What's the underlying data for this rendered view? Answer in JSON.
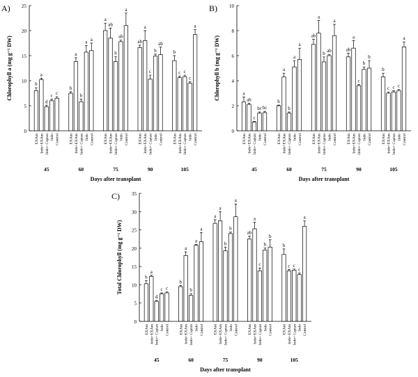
{
  "chart_data": [
    {
      "type": "bar",
      "panel_label": "A)",
      "ylabel": "Chlorophyll a (mg g⁻¹ DW)",
      "xlabel": "Days after transplant",
      "categories": [
        "45",
        "60",
        "75",
        "90",
        "105"
      ],
      "ylim": [
        0,
        25
      ],
      "yticks": [
        0,
        5,
        10,
        15,
        20,
        25
      ],
      "bar_color": "#ffffff",
      "series": [
        {
          "name": "EXAm",
          "values": [
            8,
            7.5,
            20,
            16.6,
            14
          ],
          "errors": [
            0.6,
            0.3,
            1.5,
            0.5,
            1
          ],
          "letters": [
            "b",
            "b",
            "a",
            "ab",
            "b"
          ]
        },
        {
          "name": "Indo+EXAm",
          "values": [
            10.2,
            13.8,
            18.5,
            18,
            10.6
          ],
          "errors": [
            0.3,
            0.8,
            2,
            2,
            0.3
          ],
          "letters": [
            "a",
            "a",
            "ab",
            "a",
            "c"
          ]
        },
        {
          "name": "Indo+ Captan",
          "values": [
            4.8,
            5.8,
            13.8,
            10.3,
            10.8
          ],
          "errors": [
            0.3,
            0.5,
            1,
            0.8,
            0.3
          ],
          "letters": [
            "d",
            "b",
            "b",
            "c",
            "c"
          ]
        },
        {
          "name": "Indo",
          "values": [
            6,
            15.7,
            17.8,
            14.9,
            9.5
          ],
          "errors": [
            0.3,
            1.3,
            0.3,
            0.4,
            0.3
          ],
          "letters": [
            "c",
            "a",
            "ab",
            "b",
            "c"
          ]
        },
        {
          "name": "Control",
          "values": [
            6.5,
            16,
            21,
            15.2,
            19.2
          ],
          "errors": [
            0.3,
            1.5,
            2.5,
            1.5,
            1
          ],
          "letters": [
            "c",
            "a",
            "a",
            "ab",
            "a"
          ]
        }
      ]
    },
    {
      "type": "bar",
      "panel_label": "B)",
      "ylabel": "Chlorophyll b (mg g⁻¹ DW)",
      "xlabel": "Days after transplant",
      "categories": [
        "45",
        "60",
        "75",
        "90",
        "105"
      ],
      "ylim": [
        0,
        10
      ],
      "yticks": [
        0,
        2,
        4,
        6,
        8,
        10
      ],
      "bar_color": "#ffffff",
      "series": [
        {
          "name": "EXAm",
          "values": [
            2.3,
            2.0,
            6.9,
            5.9,
            4.3
          ],
          "errors": [
            0.4,
            0.05,
            0.4,
            0.3,
            0.3
          ],
          "letters": [
            "a",
            "b",
            "ab",
            "ab",
            "b"
          ]
        },
        {
          "name": "Indo+EXAm",
          "values": [
            2.1,
            4.3,
            7.8,
            6.6,
            3.0
          ],
          "errors": [
            0.1,
            0.3,
            1,
            0.6,
            0.1
          ],
          "letters": [
            "ab",
            "a",
            "a",
            "a",
            "c"
          ]
        },
        {
          "name": "Indo+ Captan",
          "values": [
            0.7,
            1.4,
            5.5,
            3.6,
            3.1
          ],
          "errors": [
            0.05,
            0.1,
            0.4,
            0.1,
            0.1
          ],
          "letters": [
            "c",
            "b",
            "b",
            "c",
            "c"
          ]
        },
        {
          "name": "Indo",
          "values": [
            1.4,
            5.1,
            6.0,
            4.9,
            3.2
          ],
          "errors": [
            0.1,
            0.5,
            0.1,
            0.2,
            0.1
          ],
          "letters": [
            "bc",
            "a",
            "ab",
            "b",
            "c"
          ]
        },
        {
          "name": "Control",
          "values": [
            1.45,
            5.7,
            7.6,
            5.0,
            6.7
          ],
          "errors": [
            0.1,
            0.9,
            0.9,
            0.6,
            0.4
          ],
          "letters": [
            "bc",
            "a",
            "a",
            "b",
            "a"
          ]
        }
      ]
    },
    {
      "type": "bar",
      "panel_label": "C)",
      "ylabel": "Total Chlorophyll (mg g⁻¹ DW)",
      "xlabel": "Days after transplant",
      "categories": [
        "45",
        "60",
        "75",
        "90",
        "105"
      ],
      "ylim": [
        0,
        35
      ],
      "yticks": [
        0,
        5,
        10,
        15,
        20,
        25,
        30,
        35
      ],
      "bar_color": "#ffffff",
      "series": [
        {
          "name": "EXAm",
          "values": [
            10.3,
            9.5,
            26.8,
            22.5,
            18.3
          ],
          "errors": [
            0.8,
            0.3,
            1,
            0.8,
            1.5
          ],
          "letters": [
            "b",
            "b",
            "a",
            "ab",
            "b"
          ]
        },
        {
          "name": "Indo+EXAm",
          "values": [
            12.3,
            18,
            27.5,
            25.3,
            13.8
          ],
          "errors": [
            0.3,
            1,
            2.5,
            1.8,
            0.4
          ],
          "letters": [
            "a",
            "a",
            "a",
            "a",
            "c"
          ]
        },
        {
          "name": "Indo+ Captan",
          "values": [
            5.5,
            7.1,
            19.3,
            13.8,
            14
          ],
          "errors": [
            0.2,
            0.5,
            1,
            0.8,
            0.3
          ],
          "letters": [
            "d",
            "b",
            "b",
            "c",
            "c"
          ]
        },
        {
          "name": "Indo",
          "values": [
            7.5,
            20.8,
            24,
            19.5,
            12.8
          ],
          "errors": [
            0.3,
            0.2,
            0.4,
            0.6,
            0.4
          ],
          "letters": [
            "c",
            "a",
            "b",
            "b",
            "c"
          ]
        },
        {
          "name": "Control",
          "values": [
            7.8,
            21.8,
            28.6,
            20.3,
            26
          ],
          "errors": [
            0.3,
            2.5,
            3.5,
            2,
            1.5
          ],
          "letters": [
            "c",
            "a",
            "a",
            "b",
            "a"
          ]
        }
      ]
    }
  ]
}
